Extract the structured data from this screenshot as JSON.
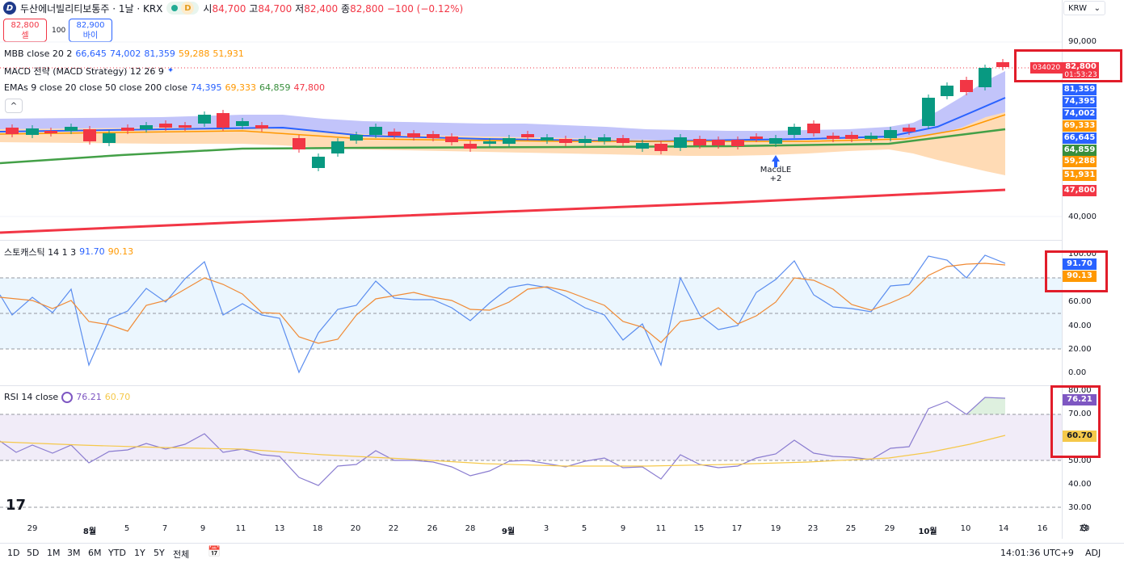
{
  "header": {
    "symbol": "두산에너빌리티보통주 · 1날 · KRX",
    "market_badge": "D",
    "o_label": "시",
    "o_value": "84,700",
    "h_label": "고",
    "h_value": "84,700",
    "l_label": "저",
    "l_value": "82,400",
    "c_label": "종",
    "c_value": "82,800",
    "change": "−100 (−0.12%)"
  },
  "trade": {
    "sell_price": "82,800",
    "sell_label": "셀",
    "qty": "100",
    "buy_price": "82,900",
    "buy_label": "바이"
  },
  "currency": "KRW",
  "legends": {
    "mbb": {
      "name": "MBB close 20 2",
      "v1": "66,645",
      "v2": "74,002",
      "v3": "81,359",
      "v4": "59,288",
      "v5": "51,931"
    },
    "macd": {
      "name": "MACD 전략 (MACD Strategy) 12 26 9"
    },
    "emas": {
      "name": "EMAs 9 close 20 close 50 close 200 close",
      "v1": "74,395",
      "v2": "69,333",
      "v3": "64,859",
      "v4": "47,800"
    },
    "stoch": {
      "name": "스토캐스틱 14 1 3",
      "k": "91.70",
      "d": "90.13"
    },
    "rsi": {
      "name": "RSI 14 close",
      "v": "76.21",
      "ma": "60.70"
    }
  },
  "price_axis": {
    "ticks": [
      "90,000",
      "40,000"
    ],
    "last_price_id": "034020",
    "last_price": "82,800",
    "countdown": "01:53:23",
    "tags": [
      {
        "text": "81,359",
        "color": "#2962ff"
      },
      {
        "text": "74,395",
        "color": "#2962ff"
      },
      {
        "text": "74,002",
        "color": "#2962ff"
      },
      {
        "text": "69,333",
        "color": "#ff9800"
      },
      {
        "text": "66,645",
        "color": "#2962ff"
      },
      {
        "text": "64,859",
        "color": "#388e3c"
      },
      {
        "text": "59,288",
        "color": "#ff9800"
      },
      {
        "text": "51,931",
        "color": "#ff9800"
      },
      {
        "text": "47,800",
        "color": "#f23645"
      }
    ]
  },
  "stoch_axis": {
    "ticks": [
      "100.00",
      "60.00",
      "40.00",
      "20.00",
      "0.00"
    ],
    "k_tag": "91.70",
    "d_tag": "90.13"
  },
  "rsi_axis": {
    "ticks": [
      "80.00",
      "70.00",
      "50.00",
      "40.00",
      "30.00"
    ],
    "rsi_tag": "76.21",
    "ma_tag": "60.70"
  },
  "signal": {
    "label": "MacdLE",
    "qty": "+2"
  },
  "x_axis": [
    "29",
    "8월",
    "5",
    "7",
    "9",
    "11",
    "13",
    "18",
    "20",
    "22",
    "26",
    "28",
    "9월",
    "3",
    "5",
    "9",
    "11",
    "15",
    "17",
    "19",
    "23",
    "25",
    "29",
    "10월",
    "10",
    "14",
    "16",
    "20"
  ],
  "timeframes": [
    "1D",
    "5D",
    "1M",
    "3M",
    "6M",
    "YTD",
    "1Y",
    "5Y",
    "전체"
  ],
  "status": {
    "time": "14:01:36 UTC+9",
    "adj": "ADJ"
  },
  "colors": {
    "up": "#089981",
    "down": "#f23645",
    "mbb": "#2962ff",
    "ema200": "#f23645",
    "stoch_k": "#5b8def",
    "stoch_d": "#f08a35",
    "rsi": "#8a7cd0",
    "rsi_ma": "#f5c84a"
  }
}
